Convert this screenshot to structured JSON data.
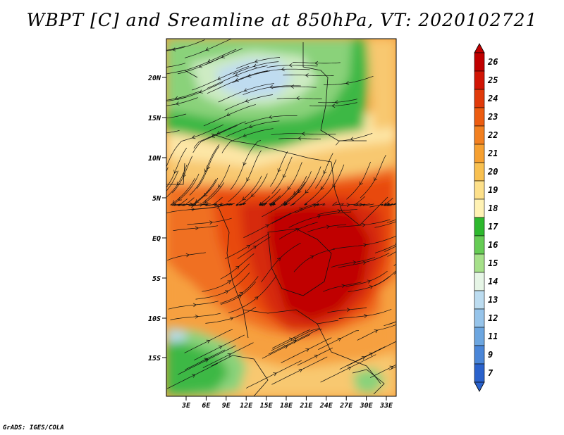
{
  "title": "WBPT [C] and Sreamline at 850hPa, VT: 2020102721",
  "credit": "GrADS: IGES/COLA",
  "map": {
    "lat_labels": [
      "20N",
      "15N",
      "10N",
      "5N",
      "EQ",
      "5S",
      "10S",
      "15S"
    ],
    "lon_labels": [
      "3E",
      "6E",
      "9E",
      "12E",
      "15E",
      "18E",
      "21E",
      "24E",
      "27E",
      "30E",
      "33E"
    ],
    "lon_range": [
      0,
      35
    ],
    "lat_range": [
      -20.5,
      24.5
    ]
  },
  "colorbar": {
    "levels": [
      "26",
      "25",
      "24",
      "23",
      "22",
      "21",
      "20",
      "19",
      "18",
      "17",
      "16",
      "15",
      "14",
      "13",
      "12",
      "11",
      "9",
      "7"
    ],
    "colors": [
      "#c00000",
      "#d11505",
      "#e03a0a",
      "#ec5c10",
      "#f28020",
      "#f6a030",
      "#f8c050",
      "#fde08a",
      "#fff2b4",
      "#2db82d",
      "#66cc55",
      "#a6e08a",
      "#e6f5e6",
      "#bcdcf0",
      "#96c4ea",
      "#6ca6e0",
      "#4a86d8",
      "#2a62cc"
    ]
  },
  "fields": {
    "colors": {
      "dark_red": "#c00000",
      "red": "#d62a0a",
      "red_orange": "#e84a10",
      "orange": "#f07020",
      "light_orange": "#f6a040",
      "tan": "#f8c870",
      "pale_yellow": "#fde6a6",
      "green": "#3cb844",
      "light_green": "#8ad27a",
      "pale_green": "#cdebc3",
      "pale_blue": "#bfdcf0"
    }
  }
}
